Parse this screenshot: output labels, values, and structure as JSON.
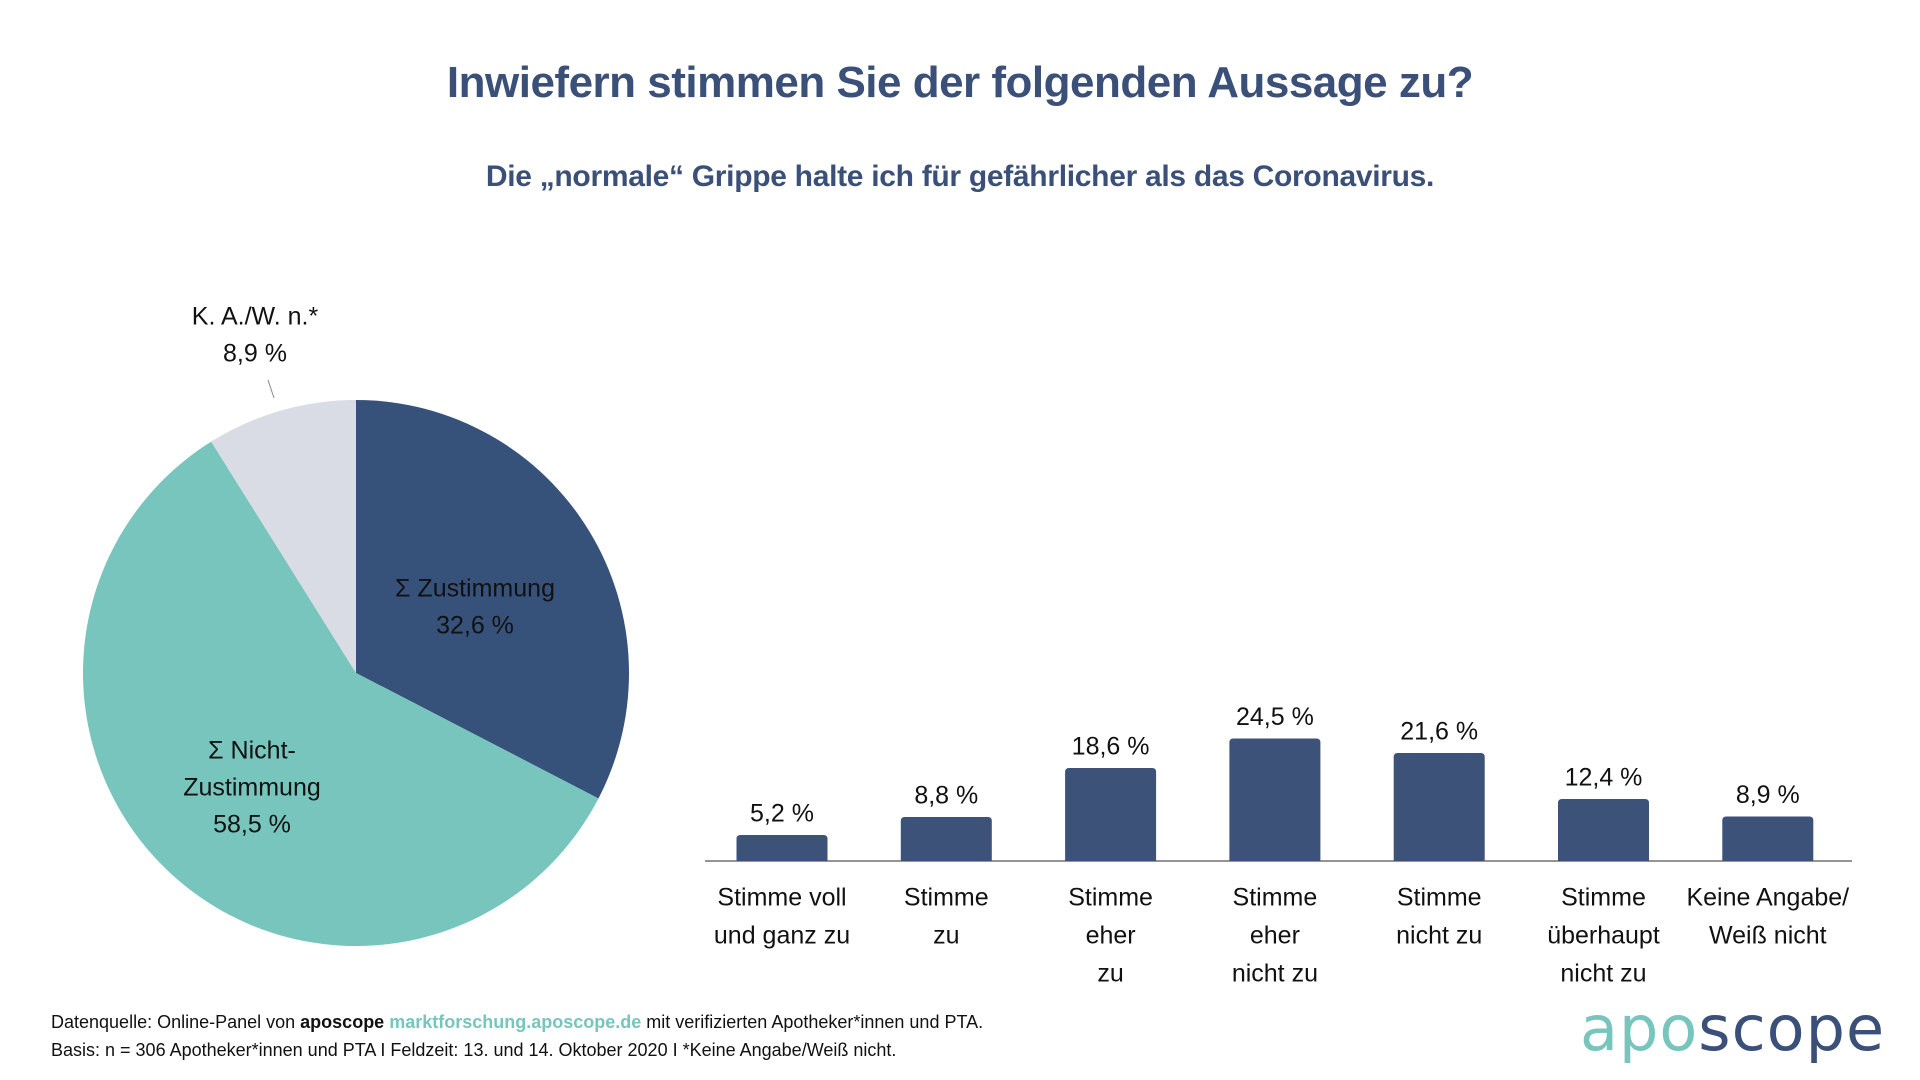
{
  "header": {
    "title": "Inwiefern stimmen Sie der folgenden Aussage zu?",
    "subtitle": "Die „normale“ Grippe halte ich für gefährlicher als das Coronavirus."
  },
  "colors": {
    "navy": "#37527A",
    "bar": "#3D5278",
    "teal": "#77C5BC",
    "gray": "#D9DCE5",
    "axis": "#707070"
  },
  "chart_data": [
    {
      "type": "pie",
      "title": "",
      "slices": [
        {
          "label_lines": [
            "Σ Zustimmung"
          ],
          "value": 32.6,
          "value_label": "32,6 %",
          "color": "#37527A",
          "label_color": "#ffffff"
        },
        {
          "label_lines": [
            "Σ Nicht-",
            "Zustimmung"
          ],
          "value": 58.5,
          "value_label": "58,5 %",
          "color": "#77C5BC",
          "label_color": "#111111"
        },
        {
          "label_lines": [
            "K. A./W. n.*"
          ],
          "value": 8.9,
          "value_label": "8,9 %",
          "color": "#D9DCE5",
          "label_color": "#111111",
          "label_outside": true
        }
      ],
      "start": "top",
      "direction": "clockwise"
    },
    {
      "type": "bar",
      "title": "",
      "xlabel": "",
      "ylabel": "",
      "grid": false,
      "categories": [
        [
          "Stimme voll",
          "und ganz zu"
        ],
        [
          "Stimme",
          "zu"
        ],
        [
          "Stimme",
          "eher",
          "zu"
        ],
        [
          "Stimme",
          "eher",
          "nicht zu"
        ],
        [
          "Stimme",
          "nicht zu"
        ],
        [
          "Stimme",
          "überhaupt",
          "nicht zu"
        ],
        [
          "Keine Angabe/",
          "Weiß nicht"
        ]
      ],
      "values": [
        5.2,
        8.8,
        18.6,
        24.5,
        21.6,
        12.4,
        8.9
      ],
      "value_labels": [
        "5,2 %",
        "8,8 %",
        "18,6 %",
        "24,5 %",
        "21,6 %",
        "12,4 %",
        "8,9 %"
      ],
      "unit": "%",
      "ylim": [
        0,
        25
      ]
    }
  ],
  "footer": {
    "line1_prefix": "Datenquelle: Online-Panel von ",
    "line1_brand": "aposcope",
    "line1_link": "marktforschung.aposcope.de",
    "line1_suffix": " mit verifizierten Apotheker*innen und PTA.",
    "line2": "Basis: n = 306 Apotheker*innen und PTA I Feldzeit: 13. und 14. Oktober 2020 I *Keine Angabe/Weiß nicht."
  },
  "logo": {
    "part1": "apo",
    "part2": "scope"
  }
}
